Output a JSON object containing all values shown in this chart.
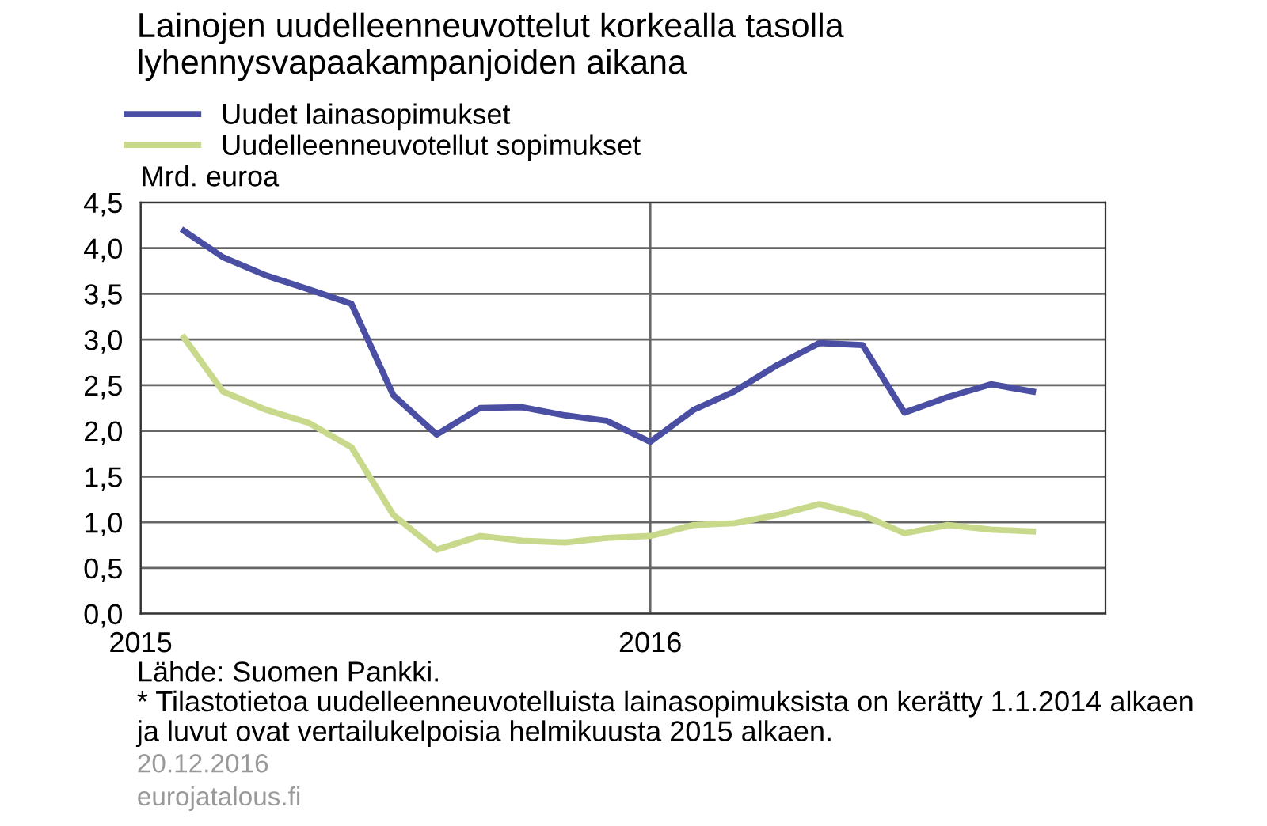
{
  "chart_data": {
    "type": "line",
    "title": "Lainojen uudelleenneuvottelut korkealla tasolla\nlyhennysvapaakampanjoiden aikana",
    "ylabel": "Mrd. euroa",
    "x": [
      "2015-02",
      "2015-03",
      "2015-04",
      "2015-05",
      "2015-06",
      "2015-07",
      "2015-08",
      "2015-09",
      "2015-10",
      "2015-11",
      "2015-12",
      "2016-01",
      "2016-02",
      "2016-03",
      "2016-04",
      "2016-05",
      "2016-06",
      "2016-07",
      "2016-08",
      "2016-09",
      "2016-10"
    ],
    "series": [
      {
        "name": "Uudet lainasopimukset",
        "color": "#4a4fa3",
        "values": [
          4.19,
          3.9,
          3.7,
          3.55,
          3.39,
          2.39,
          1.96,
          2.25,
          2.26,
          2.17,
          2.11,
          1.88,
          2.23,
          2.43,
          2.72,
          2.96,
          2.94,
          2.2,
          2.37,
          2.51,
          2.43
        ]
      },
      {
        "name": "Uudelleenneuvotellut sopimukset",
        "color": "#c8d98c",
        "values": [
          3.02,
          2.43,
          2.23,
          2.09,
          1.82,
          1.08,
          0.7,
          0.85,
          0.8,
          0.78,
          0.83,
          0.85,
          0.97,
          0.99,
          1.08,
          1.2,
          1.08,
          0.88,
          0.97,
          0.92,
          0.9
        ]
      }
    ],
    "xlim": [
      "2015-01",
      "2016-11-22"
    ],
    "xticks": [
      {
        "value": "2015-01",
        "label": "2015"
      },
      {
        "value": "2016-01",
        "label": "2016"
      }
    ],
    "ylim": [
      0,
      4.5
    ],
    "yticks": [
      {
        "value": 0,
        "label": "0,0"
      },
      {
        "value": 0.5,
        "label": "0,5"
      },
      {
        "value": 1,
        "label": "1,0"
      },
      {
        "value": 1.5,
        "label": "1,5"
      },
      {
        "value": 2,
        "label": "2,0"
      },
      {
        "value": 2.5,
        "label": "2,5"
      },
      {
        "value": 3,
        "label": "3,0"
      },
      {
        "value": 3.5,
        "label": "3,5"
      },
      {
        "value": 4,
        "label": "4,0"
      },
      {
        "value": 4.5,
        "label": "4,5"
      }
    ],
    "grid": true,
    "legend": "top left",
    "marker": "none",
    "line_style": "solid",
    "annotations": [
      "Lähde: Suomen Pankki.",
      "* Tilastotietoa uudelleenneuvotelluista lainasopimuksista on kerätty 1.1.2014 alkaen\nja luvut ovat vertailukelpoisia helmikuusta 2015 alkaen.",
      "20.12.2016",
      "eurojatalous.fi"
    ]
  }
}
